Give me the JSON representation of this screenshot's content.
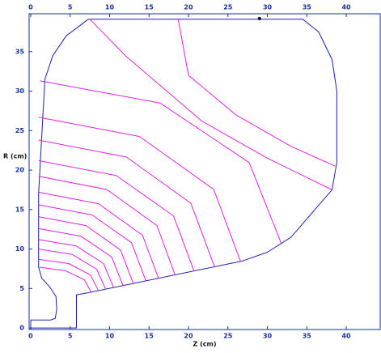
{
  "chart_data": {
    "type": "line",
    "xlabel": "Z (cm)",
    "ylabel": "R (cm)",
    "xlim": [
      -0.2,
      44.3
    ],
    "ylim": [
      -0.2,
      39.8
    ],
    "xticks": [
      0,
      5,
      10,
      15,
      20,
      25,
      30,
      35,
      40
    ],
    "yticks": [
      0,
      5,
      10,
      15,
      20,
      25,
      30,
      35
    ],
    "axis_color": "#1a2f9c",
    "series": [
      {
        "color": "#1f1fb0",
        "mode": "line",
        "x": [
          0,
          5.8,
          5.8,
          7,
          26.9,
          30,
          33,
          38.2,
          38.8,
          38.8,
          38.2,
          36.5,
          34.5,
          7.3,
          4.5,
          2.8,
          1.8,
          1.0,
          1.0,
          1.4,
          2.4,
          3.2,
          3.3,
          3.1,
          2.5,
          0,
          0
        ],
        "values": [
          0,
          0,
          4.2,
          4.4,
          8.5,
          9.6,
          11.5,
          17.5,
          21,
          30,
          34,
          37.5,
          39.1,
          39.1,
          37,
          34.5,
          31.5,
          17,
          7.7,
          6.3,
          5.2,
          4.0,
          2.3,
          1.2,
          1.0,
          1,
          0
        ]
      },
      {
        "color": "#e020e0",
        "mode": "line",
        "x": [
          1.2,
          16.4,
          27.7,
          31.8
        ],
        "values": [
          31.3,
          28.5,
          20.95,
          10.6
        ]
      },
      {
        "color": "#e020e0",
        "mode": "line",
        "x": [
          1,
          13.8,
          23.2,
          26.6
        ],
        "values": [
          26.7,
          24.25,
          17.55,
          8.4
        ]
      },
      {
        "color": "#e020e0",
        "mode": "line",
        "x": [
          1,
          12.15,
          20.3,
          23.3
        ],
        "values": [
          23.8,
          21.65,
          15.8,
          7.76
        ]
      },
      {
        "color": "#e020e0",
        "mode": "line",
        "x": [
          1,
          10.85,
          18.1,
          20.7
        ],
        "values": [
          21.2,
          19.3,
          14.2,
          7.22
        ]
      },
      {
        "color": "#e020e0",
        "mode": "line",
        "x": [
          1,
          9.65,
          16.0,
          18.3
        ],
        "values": [
          19.2,
          17.53,
          12.97,
          6.73
        ]
      },
      {
        "color": "#e020e0",
        "mode": "line",
        "x": [
          1,
          8.6,
          14.16,
          16.2
        ],
        "values": [
          17.2,
          15.74,
          11.75,
          6.3
        ]
      },
      {
        "color": "#e020e0",
        "mode": "line",
        "x": [
          1,
          7.8,
          12.78,
          14.6
        ],
        "values": [
          15.6,
          14.31,
          10.79,
          5.97
        ]
      },
      {
        "color": "#e020e0",
        "mode": "line",
        "x": [
          1,
          7.0,
          11.39,
          13.0
        ],
        "values": [
          14.1,
          12.97,
          9.87,
          5.64
        ]
      },
      {
        "color": "#e020e0",
        "mode": "line",
        "x": [
          1,
          6.35,
          10.27,
          11.7
        ],
        "values": [
          12.6,
          11.63,
          8.99,
          5.37
        ]
      },
      {
        "color": "#e020e0",
        "mode": "line",
        "x": [
          1,
          5.75,
          9.23,
          10.5
        ],
        "values": [
          11.2,
          10.39,
          8.16,
          5.12
        ]
      },
      {
        "color": "#e020e0",
        "mode": "line",
        "x": [
          1,
          5.25,
          8.36,
          9.5
        ],
        "values": [
          10,
          9.32,
          7.45,
          4.9
        ]
      },
      {
        "color": "#e020e0",
        "mode": "line",
        "x": [
          1,
          4.8,
          7.58,
          8.6
        ],
        "values": [
          8.7,
          8.16,
          6.7,
          4.7
        ]
      },
      {
        "color": "#e020e0",
        "mode": "line",
        "x": [
          1.1,
          4.35,
          6.8,
          7.7
        ],
        "values": [
          7.7,
          7.27,
          6.1,
          4.5
        ]
      },
      {
        "color": "#e020e0",
        "mode": "line",
        "x": [
          7.5,
          12,
          21.7,
          30,
          38.2
        ],
        "values": [
          39.1,
          34.5,
          26.2,
          21.5,
          17.5
        ]
      },
      {
        "color": "#e020e0",
        "mode": "line",
        "x": [
          18.7,
          20,
          26,
          33,
          38.6
        ],
        "values": [
          39.1,
          32,
          27,
          23,
          20.5
        ]
      },
      {
        "color": "#000000",
        "mode": "marker",
        "x": [
          29
        ],
        "values": [
          39.2
        ]
      }
    ]
  }
}
